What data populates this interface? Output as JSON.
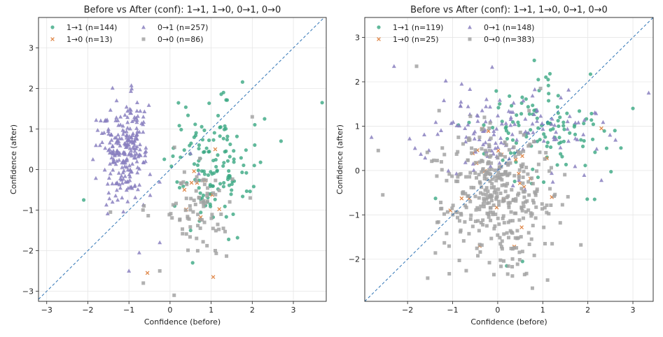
{
  "chart_data": [
    {
      "type": "scatter",
      "title": "Before vs After (conf): 1→1, 1→0, 0→1, 0→0",
      "xlabel": "Confidence (before)",
      "ylabel": "Confidence (after)",
      "xlim": [
        -3.2,
        3.8
      ],
      "ylim": [
        -3.25,
        3.75
      ],
      "xticks": [
        -3,
        -2,
        -1,
        0,
        1,
        2,
        3
      ],
      "yticks": [
        -3,
        -2,
        -1,
        0,
        1,
        2,
        3
      ],
      "grid": true,
      "diagonal": "y = x",
      "legend_position": "top-left",
      "series": [
        {
          "name": "1→1 (n=144)",
          "key": "s11",
          "marker": "circle",
          "color": "#3aa882",
          "n": 144,
          "cx": 0.95,
          "cy": 0.15,
          "sx": 0.48,
          "sy": 0.75,
          "extra": [
            [
              -2.1,
              -0.75
            ],
            [
              3.7,
              1.65
            ],
            [
              2.7,
              0.7
            ],
            [
              2.3,
              1.25
            ],
            [
              1.3,
              1.9
            ],
            [
              0.55,
              -2.3
            ],
            [
              0.5,
              -1.5
            ],
            [
              2.05,
              0.1
            ]
          ]
        },
        {
          "name": "1→0 (n=13)",
          "key": "s10",
          "marker": "x",
          "color": "#e0884a",
          "n": 13,
          "cx": 0.7,
          "cy": -0.6,
          "sx": 0.3,
          "sy": 0.5,
          "extra": [
            [
              -0.55,
              -2.55
            ],
            [
              1.05,
              -2.65
            ],
            [
              0.35,
              -0.5
            ],
            [
              1.1,
              0.5
            ]
          ]
        },
        {
          "name": "0→1 (n=257)",
          "key": "s01",
          "marker": "triangle",
          "color": "#8a80c0",
          "n": 257,
          "cx": -1.1,
          "cy": 0.5,
          "sx": 0.28,
          "sy": 0.65,
          "extra": [
            [
              -1.0,
              -2.5
            ],
            [
              -0.75,
              -2.05
            ],
            [
              -0.25,
              -1.8
            ],
            [
              -1.4,
              -0.8
            ],
            [
              0.7,
              -0.1
            ],
            [
              -1.3,
              1.7
            ],
            [
              -0.65,
              1.3
            ],
            [
              0.5,
              0.4
            ]
          ]
        },
        {
          "name": "0→0 (n=86)",
          "key": "s00",
          "marker": "square",
          "color": "#a3a3a3",
          "n": 86,
          "cx": 0.7,
          "cy": -1.0,
          "sx": 0.45,
          "sy": 0.55,
          "extra": [
            [
              0.1,
              -3.1
            ],
            [
              -0.65,
              -2.8
            ],
            [
              -1.45,
              -1.05
            ],
            [
              1.95,
              -0.7
            ],
            [
              2.0,
              1.3
            ],
            [
              -0.25,
              -2.5
            ],
            [
              1.1,
              -2.0
            ]
          ]
        }
      ]
    },
    {
      "type": "scatter",
      "title": "Before vs After (conf): 1→1, 1→0, 0→1, 0→0",
      "xlabel": "Confidence (before)",
      "ylabel": "Confidence (after)",
      "xlim": [
        -2.95,
        3.45
      ],
      "ylim": [
        -2.95,
        3.45
      ],
      "xticks": [
        -2,
        -1,
        0,
        1,
        2,
        3
      ],
      "yticks": [
        -2,
        -1,
        0,
        1,
        2,
        3
      ],
      "grid": true,
      "diagonal": "y = x",
      "legend_position": "top-left",
      "series": [
        {
          "name": "1→1 (n=119)",
          "key": "s11",
          "marker": "circle",
          "color": "#3aa882",
          "n": 119,
          "cx": 0.9,
          "cy": 0.85,
          "sx": 0.7,
          "sy": 0.55,
          "extra": [
            [
              2.15,
              -0.65
            ],
            [
              3.0,
              1.4
            ],
            [
              2.6,
              0.9
            ],
            [
              0.2,
              -2.15
            ],
            [
              0.55,
              -2.05
            ],
            [
              0.9,
              2.05
            ]
          ]
        },
        {
          "name": "1→0 (n=25)",
          "key": "s10",
          "marker": "x",
          "color": "#e0884a",
          "n": 25,
          "cx": 0.2,
          "cy": -0.2,
          "sx": 0.6,
          "sy": 0.7,
          "extra": [
            [
              2.3,
              0.95
            ],
            [
              1.2,
              -0.6
            ],
            [
              -1.05,
              -0.9
            ],
            [
              -0.4,
              -1.7
            ]
          ]
        },
        {
          "name": "0→1 (n=148)",
          "key": "s01",
          "marker": "triangle",
          "color": "#8a80c0",
          "n": 148,
          "cx": 0.4,
          "cy": 0.9,
          "sx": 1.05,
          "sy": 0.55,
          "extra": [
            [
              -2.3,
              2.35
            ],
            [
              -2.8,
              0.75
            ],
            [
              3.35,
              1.75
            ],
            [
              -0.8,
              1.95
            ]
          ]
        },
        {
          "name": "0→0 (n=383)",
          "key": "s00",
          "marker": "square",
          "color": "#a3a3a3",
          "n": 383,
          "cx": 0.0,
          "cy": -0.6,
          "sx": 0.65,
          "sy": 0.75,
          "extra": [
            [
              -1.8,
              2.35
            ],
            [
              -2.65,
              0.45
            ],
            [
              -2.55,
              -0.55
            ],
            [
              0.95,
              1.85
            ],
            [
              -1.3,
              1.35
            ],
            [
              1.05,
              -1.65
            ]
          ]
        }
      ]
    }
  ]
}
